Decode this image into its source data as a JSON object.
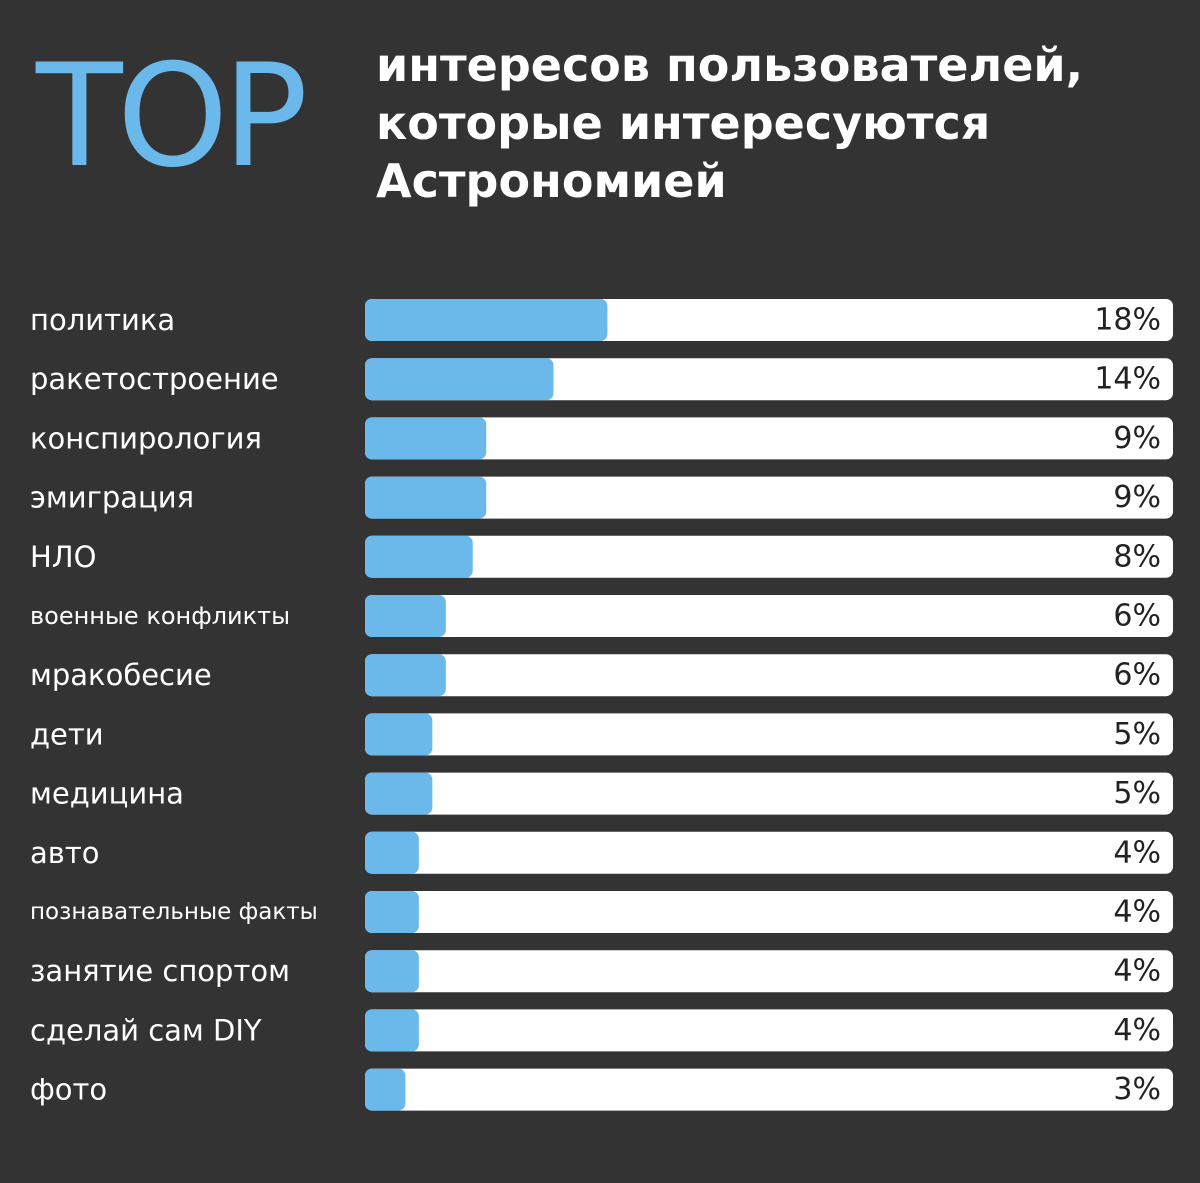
{
  "header": {
    "top_word": "TOP",
    "title_lines": [
      "интересов пользователей,",
      "которые интересуются",
      "Астрономией"
    ]
  },
  "colors": {
    "background": "#333333",
    "bar_fill": "#6bb8ea",
    "track": "#ffffff",
    "text": "#ffffff",
    "value_text": "#222222"
  },
  "chart_data": {
    "type": "bar",
    "orientation": "horizontal",
    "categories": [
      "политика",
      "ракетостроение",
      "конспирология",
      "эмиграция",
      "НЛО",
      "военные конфликты",
      "мракобесие",
      "дети",
      "медицина",
      "авто",
      "познавательные факты",
      "занятие спортом",
      "сделай сам DIY",
      "фото"
    ],
    "values": [
      18,
      14,
      9,
      9,
      8,
      6,
      6,
      5,
      5,
      4,
      4,
      4,
      4,
      3
    ],
    "value_labels": [
      "18%",
      "14%",
      "9%",
      "9%",
      "8%",
      "6%",
      "6%",
      "5%",
      "5%",
      "4%",
      "4%",
      "4%",
      "4%",
      "3%"
    ],
    "unit": "%",
    "xlim": [
      0,
      60
    ]
  }
}
